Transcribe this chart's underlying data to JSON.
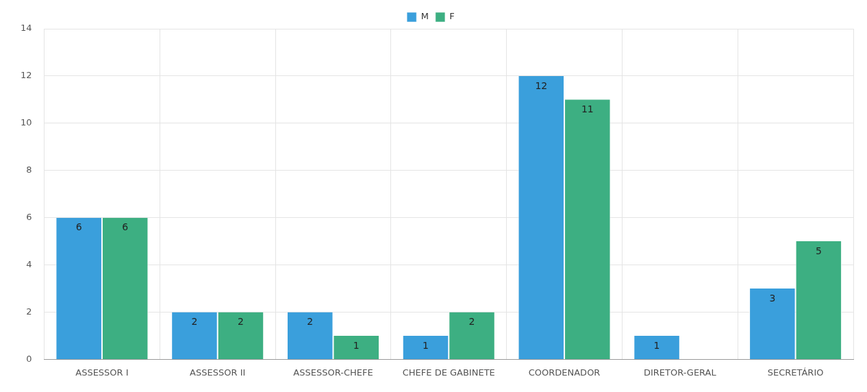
{
  "chart_data": {
    "type": "bar",
    "categories": [
      "ASSESSOR I",
      "ASSESSOR II",
      "ASSESSOR-CHEFE",
      "CHEFE DE GABINETE",
      "COORDENADOR",
      "DIRETOR-GERAL",
      "SECRETÁRIO"
    ],
    "series": [
      {
        "name": "M",
        "color": "#3a9fdc",
        "values": [
          6,
          2,
          2,
          1,
          12,
          1,
          3
        ]
      },
      {
        "name": "F",
        "color": "#3daf82",
        "values": [
          6,
          2,
          1,
          2,
          11,
          null,
          5
        ]
      }
    ],
    "ylim": [
      0,
      14
    ],
    "yticks": [
      0,
      2,
      4,
      6,
      8,
      10,
      12,
      14
    ],
    "grid": true,
    "legend": "top",
    "data_labels": true
  }
}
